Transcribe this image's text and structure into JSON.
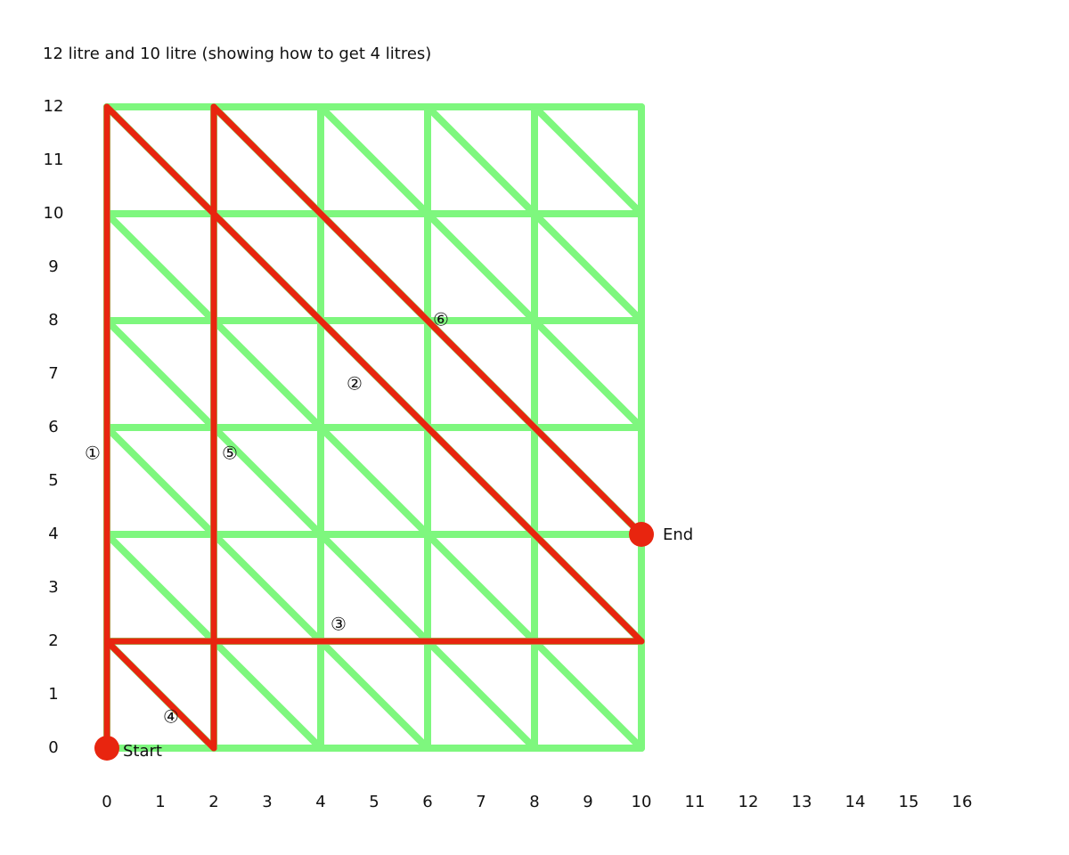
{
  "title": "12 litre and 10 litre (showing how to get 4 litres)",
  "y_ticks": [
    0,
    1,
    2,
    3,
    4,
    5,
    6,
    7,
    8,
    9,
    10,
    11,
    12
  ],
  "x_ticks": [
    0,
    1,
    2,
    3,
    4,
    5,
    6,
    7,
    8,
    9,
    10,
    11,
    12,
    13,
    14,
    15,
    16
  ],
  "grid": {
    "x_max": 10,
    "y_max": 12,
    "step": 2,
    "color": "#7ef77e"
  },
  "path_color": "#e8250f",
  "steps": [
    {
      "label": "①",
      "from": [
        0,
        0
      ],
      "to": [
        0,
        12
      ]
    },
    {
      "label": "②",
      "from": [
        0,
        12
      ],
      "to": [
        10,
        2
      ]
    },
    {
      "label": "③",
      "from": [
        10,
        2
      ],
      "to": [
        0,
        2
      ]
    },
    {
      "label": "④",
      "from": [
        0,
        2
      ],
      "to": [
        2,
        0
      ]
    },
    {
      "label": "⑤",
      "from": [
        2,
        0
      ],
      "to": [
        2,
        12
      ]
    },
    {
      "label": "⑥",
      "from": [
        2,
        12
      ],
      "to": [
        10,
        4
      ]
    }
  ],
  "start": {
    "label": "Start",
    "point": [
      0,
      0
    ]
  },
  "end": {
    "label": "End",
    "point": [
      10,
      4
    ]
  }
}
